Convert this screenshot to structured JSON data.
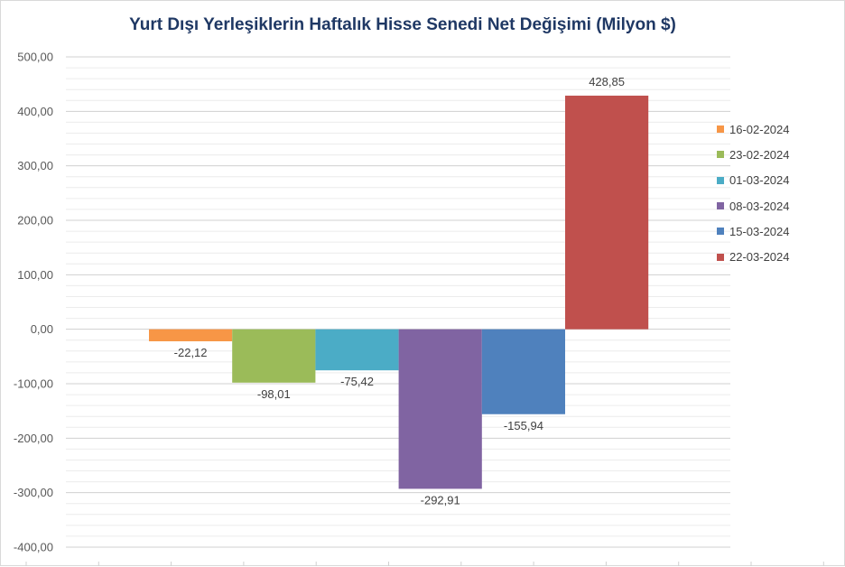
{
  "chart_data": {
    "type": "bar",
    "title": "Yurt Dışı Yerleşiklerin Haftalık Hisse Senedi Net Değişimi (Milyon $)",
    "xlabel": "",
    "ylabel": "",
    "ylim": [
      -400,
      500
    ],
    "y_ticks": [
      "500,00",
      "400,00",
      "300,00",
      "200,00",
      "100,00",
      "0,00",
      "-100,00",
      "-200,00",
      "-300,00",
      "-400,00"
    ],
    "grid": true,
    "legend_position": "right",
    "series": [
      {
        "name": "16-02-2024",
        "value": -22.12,
        "label": "-22,12",
        "color": "#f79646"
      },
      {
        "name": "23-02-2024",
        "value": -98.01,
        "label": "-98,01",
        "color": "#9bbb59"
      },
      {
        "name": "01-03-2024",
        "value": -75.42,
        "label": "-75,42",
        "color": "#4bacc6"
      },
      {
        "name": "08-03-2024",
        "value": -292.91,
        "label": "-292,91",
        "color": "#8064a2"
      },
      {
        "name": "15-03-2024",
        "value": -155.94,
        "label": "-155,94",
        "color": "#4f81bd"
      },
      {
        "name": "22-03-2024",
        "value": 428.85,
        "label": "428,85",
        "color": "#c0504d"
      }
    ]
  }
}
